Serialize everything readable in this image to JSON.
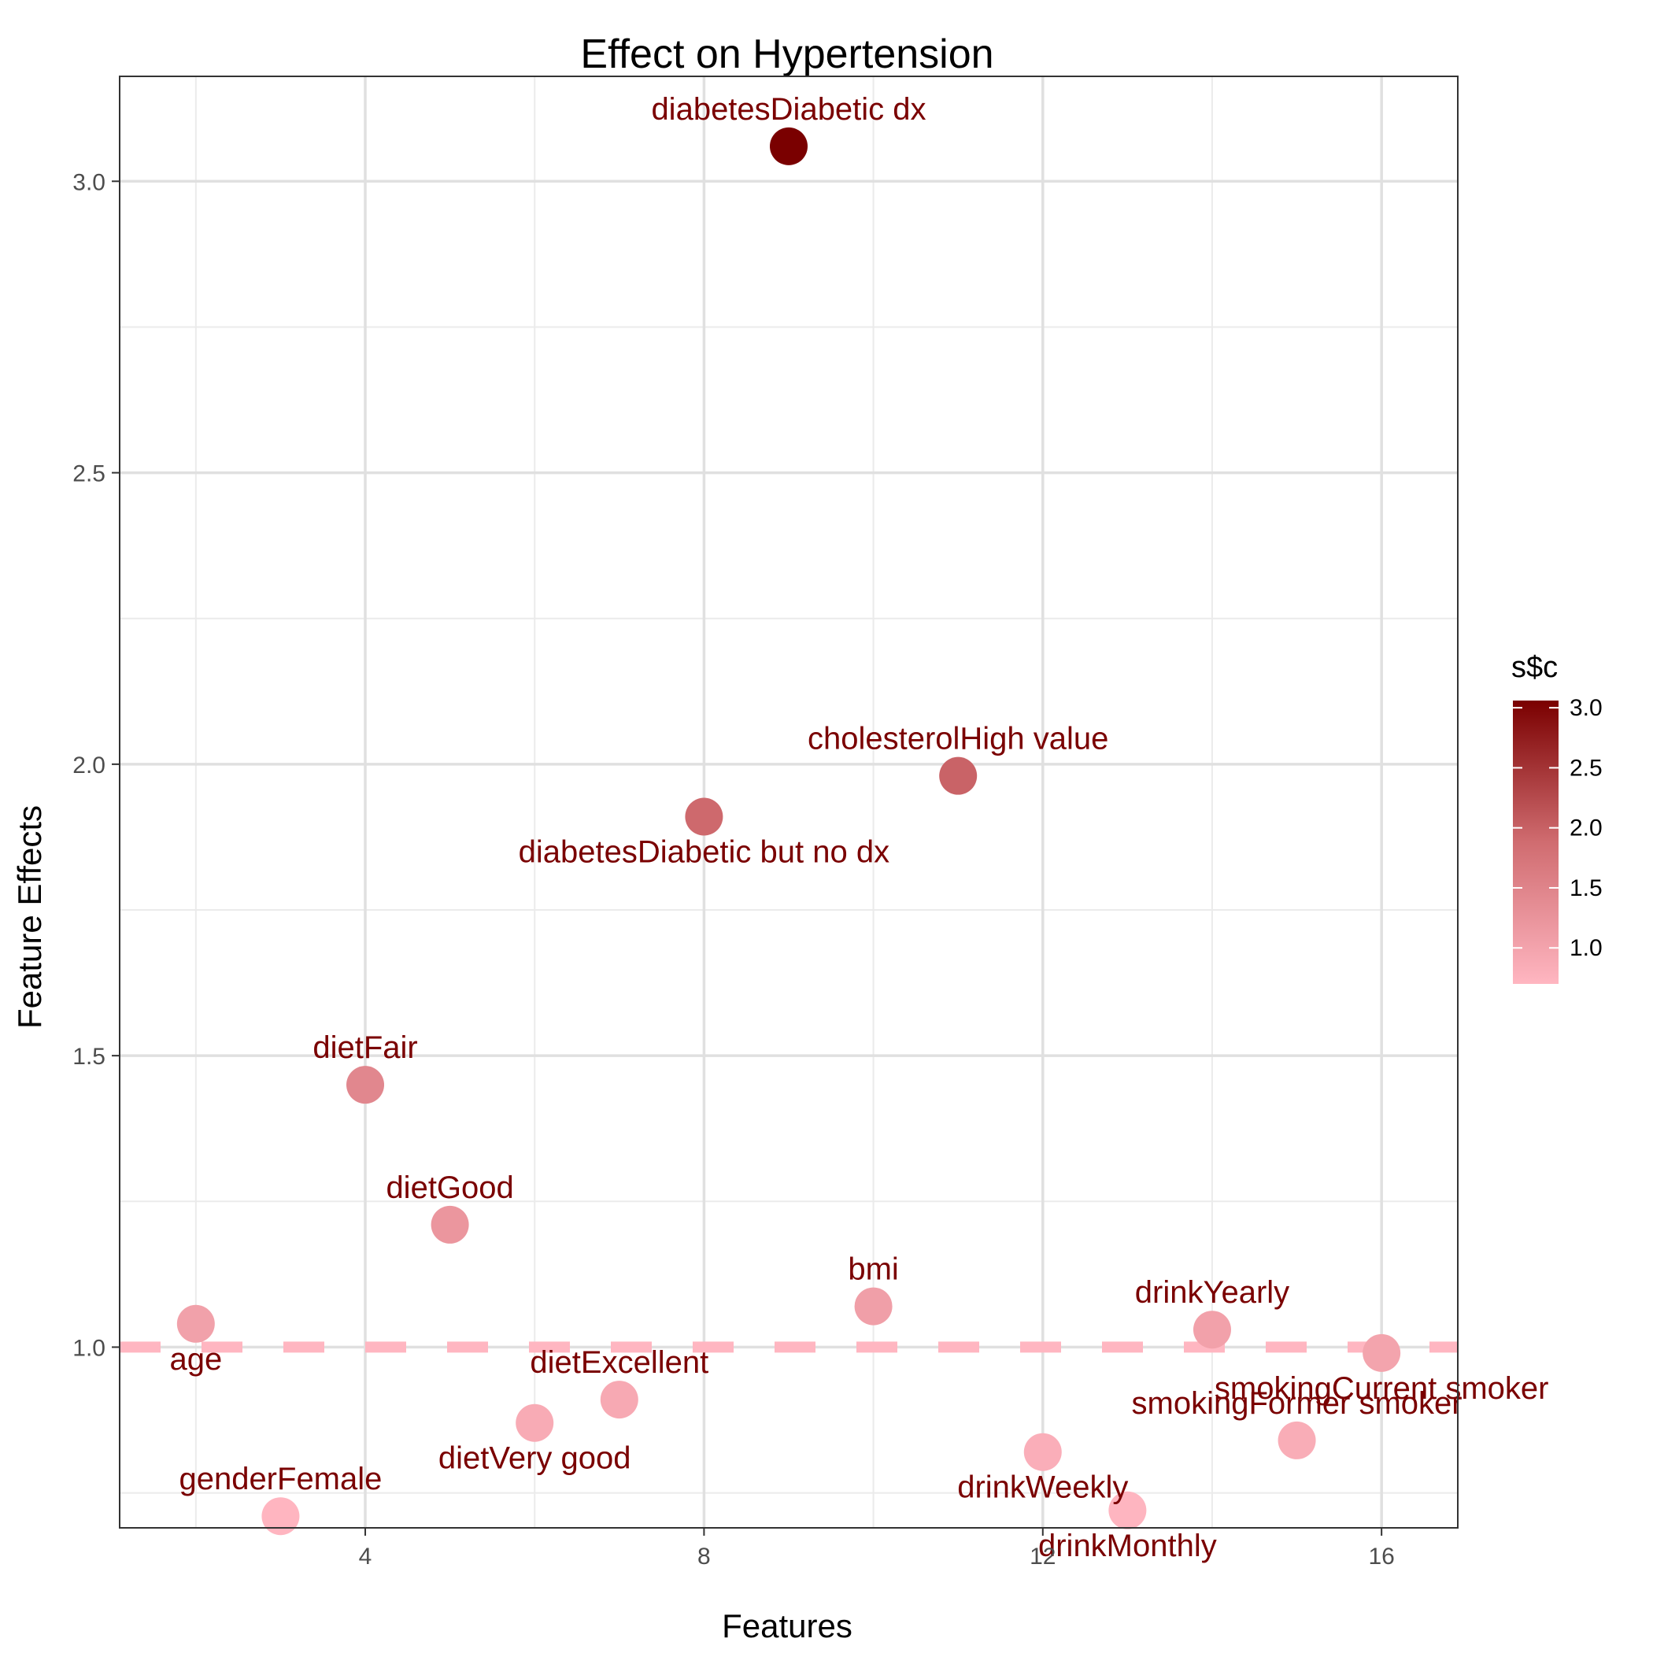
{
  "chart_data": {
    "type": "scatter",
    "title": "Effect on Hypertension",
    "xlabel": "Features",
    "ylabel": "Feature Effects",
    "xlim": [
      1.1,
      16.9
    ],
    "ylim": [
      0.69,
      3.18
    ],
    "x_ticks": [
      4,
      8,
      12,
      16
    ],
    "y_ticks": [
      1.0,
      1.5,
      2.0,
      2.5,
      3.0
    ],
    "x_tick_labels": [
      "4",
      "8",
      "12",
      "16"
    ],
    "y_tick_labels": [
      "1.0",
      "1.5",
      "2.0",
      "2.5",
      "3.0"
    ],
    "grid": true,
    "reference_line": {
      "y": 1.0,
      "style": "dashed",
      "color": "#ffb6c1"
    },
    "color_scale": {
      "title": "s$c",
      "low_color": "#ffb6c1",
      "high_color": "#7a0000",
      "range": [
        0.7,
        3.06
      ],
      "ticks": [
        "1.0",
        "1.5",
        "2.0",
        "2.5",
        "3.0"
      ],
      "tick_values": [
        1.0,
        1.5,
        2.0,
        2.5,
        3.0
      ],
      "position": "right"
    },
    "points": [
      {
        "x": 2,
        "y": 1.04,
        "label": "age",
        "label_pos": "below"
      },
      {
        "x": 3,
        "y": 0.71,
        "label": "genderFemale",
        "label_pos": "above"
      },
      {
        "x": 4,
        "y": 1.45,
        "label": "dietFair",
        "label_pos": "above"
      },
      {
        "x": 5,
        "y": 1.21,
        "label": "dietGood",
        "label_pos": "above"
      },
      {
        "x": 6,
        "y": 0.87,
        "label": "dietVery good",
        "label_pos": "below"
      },
      {
        "x": 7,
        "y": 0.91,
        "label": "dietExcellent",
        "label_pos": "above"
      },
      {
        "x": 8,
        "y": 1.91,
        "label": "diabetesDiabetic but no dx",
        "label_pos": "below"
      },
      {
        "x": 9,
        "y": 3.06,
        "label": "diabetesDiabetic dx",
        "label_pos": "above"
      },
      {
        "x": 10,
        "y": 1.07,
        "label": "bmi",
        "label_pos": "above"
      },
      {
        "x": 11,
        "y": 1.98,
        "label": "cholesterolHigh value",
        "label_pos": "above"
      },
      {
        "x": 12,
        "y": 0.82,
        "label": "drinkWeekly",
        "label_pos": "below"
      },
      {
        "x": 13,
        "y": 0.72,
        "label": "drinkMonthly",
        "label_pos": "below"
      },
      {
        "x": 14,
        "y": 1.03,
        "label": "drinkYearly",
        "label_pos": "above"
      },
      {
        "x": 15,
        "y": 0.84,
        "label": "smokingFormer smoker",
        "label_pos": "above"
      },
      {
        "x": 16,
        "y": 0.99,
        "label": "smokingCurrent smoker",
        "label_pos": "below"
      }
    ]
  }
}
